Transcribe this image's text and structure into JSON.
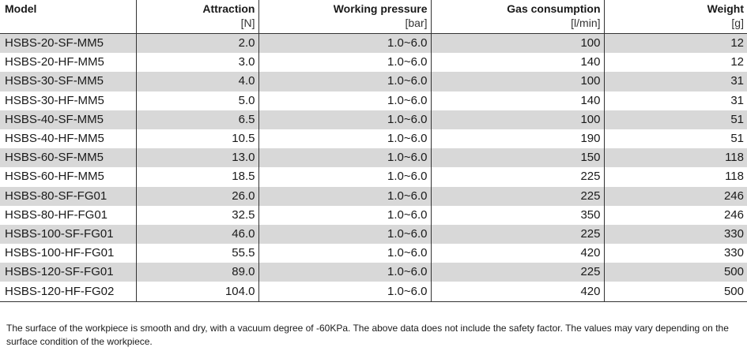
{
  "table": {
    "headers": [
      {
        "name": "Model",
        "unit": ""
      },
      {
        "name": "Attraction",
        "unit": "[N]"
      },
      {
        "name": "Working pressure",
        "unit": "[bar]"
      },
      {
        "name": "Gas consumption",
        "unit": "[l/min]"
      },
      {
        "name": "Weight",
        "unit": "[g]"
      }
    ],
    "rows": [
      [
        "HSBS-20-SF-MM5",
        "2.0",
        "1.0~6.0",
        "100",
        "12"
      ],
      [
        "HSBS-20-HF-MM5",
        "3.0",
        "1.0~6.0",
        "140",
        "12"
      ],
      [
        "HSBS-30-SF-MM5",
        "4.0",
        "1.0~6.0",
        "100",
        "31"
      ],
      [
        "HSBS-30-HF-MM5",
        "5.0",
        "1.0~6.0",
        "140",
        "31"
      ],
      [
        "HSBS-40-SF-MM5",
        "6.5",
        "1.0~6.0",
        "100",
        "51"
      ],
      [
        "HSBS-40-HF-MM5",
        "10.5",
        "1.0~6.0",
        "190",
        "51"
      ],
      [
        "HSBS-60-SF-MM5",
        "13.0",
        "1.0~6.0",
        "150",
        "118"
      ],
      [
        "HSBS-60-HF-MM5",
        "18.5",
        "1.0~6.0",
        "225",
        "118"
      ],
      [
        "HSBS-80-SF-FG01",
        "26.0",
        "1.0~6.0",
        "225",
        "246"
      ],
      [
        "HSBS-80-HF-FG01",
        "32.5",
        "1.0~6.0",
        "350",
        "246"
      ],
      [
        "HSBS-100-SF-FG01",
        "46.0",
        "1.0~6.0",
        "225",
        "330"
      ],
      [
        "HSBS-100-HF-FG01",
        "55.5",
        "1.0~6.0",
        "420",
        "330"
      ],
      [
        "HSBS-120-SF-FG01",
        "89.0",
        "1.0~6.0",
        "225",
        "500"
      ],
      [
        "HSBS-120-HF-FG02",
        "104.0",
        "1.0~6.0",
        "420",
        "500"
      ]
    ]
  },
  "colors": {
    "stripe": "#d8d8d8",
    "rule": "#333333",
    "text": "#1a1a1a"
  },
  "footnote": "The surface of the workpiece is smooth and dry, with a vacuum degree of -60KPa. The above data does not include the safety factor. The values may vary depending on the surface condition of the workpiece."
}
